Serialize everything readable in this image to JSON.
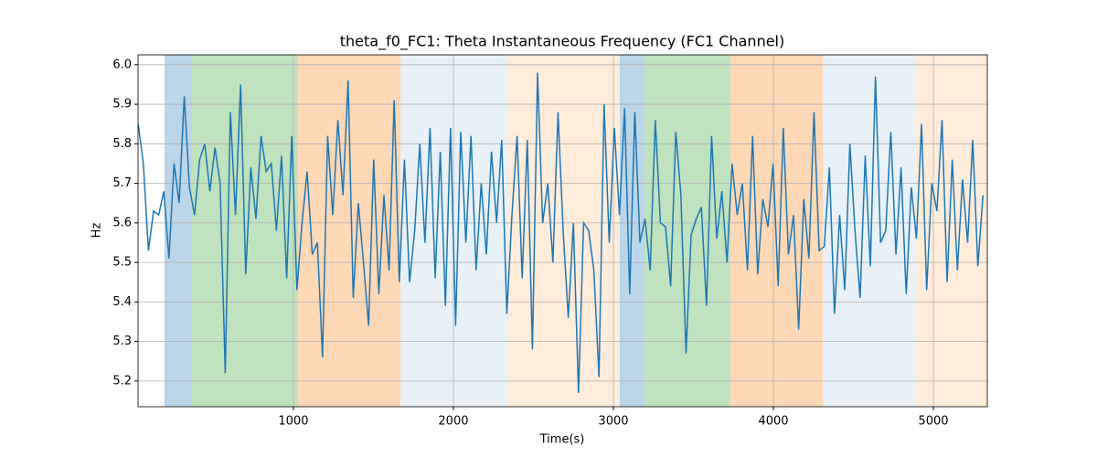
{
  "chart_data": {
    "type": "line",
    "title": "theta_f0_FC1: Theta Instantaneous Frequency (FC1 Channel)",
    "xlabel": "Time(s)",
    "ylabel": "Hz",
    "xlim": [
      29,
      5337
    ],
    "ylim": [
      5.135,
      6.025
    ],
    "xticks": [
      1000,
      2000,
      3000,
      4000,
      5000
    ],
    "yticks": [
      5.2,
      5.3,
      5.4,
      5.5,
      5.6,
      5.7,
      5.8,
      5.9,
      {
        "value": 6,
        "label": "6.0"
      }
    ],
    "grid": true,
    "regions": [
      {
        "start": 194,
        "end": 366,
        "color": "#1f77b4",
        "opacity": 0.3
      },
      {
        "start": 366,
        "end": 1029,
        "color": "#2ca02c",
        "opacity": 0.3
      },
      {
        "start": 1029,
        "end": 1669,
        "color": "#ff7f0e",
        "opacity": 0.3
      },
      {
        "start": 1669,
        "end": 2343,
        "color": "#1f77b4",
        "opacity": 0.1
      },
      {
        "start": 2343,
        "end": 3040,
        "color": "#ff7f0e",
        "opacity": 0.15
      },
      {
        "start": 3040,
        "end": 3194,
        "color": "#1f77b4",
        "opacity": 0.3
      },
      {
        "start": 3194,
        "end": 3731,
        "color": "#2ca02c",
        "opacity": 0.3
      },
      {
        "start": 3731,
        "end": 4309,
        "color": "#ff7f0e",
        "opacity": 0.3
      },
      {
        "start": 4309,
        "end": 4891,
        "color": "#1f77b4",
        "opacity": 0.1
      },
      {
        "start": 4891,
        "end": 5337,
        "color": "#ff7f0e",
        "opacity": 0.15
      }
    ],
    "x": [
      30,
      62,
      94,
      126,
      158,
      190,
      222,
      254,
      286,
      318,
      350,
      382,
      414,
      446,
      478,
      510,
      542,
      574,
      606,
      638,
      670,
      702,
      734,
      766,
      798,
      830,
      862,
      894,
      926,
      958,
      990,
      1022,
      1054,
      1086,
      1118,
      1150,
      1182,
      1214,
      1246,
      1278,
      1310,
      1342,
      1374,
      1406,
      1438,
      1470,
      1502,
      1534,
      1566,
      1598,
      1630,
      1662,
      1694,
      1726,
      1758,
      1790,
      1822,
      1854,
      1886,
      1918,
      1950,
      1982,
      2014,
      2046,
      2078,
      2110,
      2142,
      2174,
      2206,
      2238,
      2270,
      2302,
      2334,
      2366,
      2398,
      2430,
      2462,
      2494,
      2526,
      2558,
      2590,
      2622,
      2654,
      2686,
      2718,
      2750,
      2782,
      2814,
      2846,
      2878,
      2910,
      2942,
      2974,
      3006,
      3038,
      3070,
      3102,
      3134,
      3166,
      3198,
      3230,
      3262,
      3294,
      3326,
      3358,
      3390,
      3422,
      3454,
      3486,
      3518,
      3550,
      3582,
      3614,
      3646,
      3678,
      3710,
      3742,
      3774,
      3806,
      3838,
      3870,
      3902,
      3934,
      3966,
      3998,
      4030,
      4062,
      4094,
      4126,
      4158,
      4190,
      4222,
      4254,
      4286,
      4318,
      4350,
      4382,
      4414,
      4446,
      4478,
      4510,
      4542,
      4574,
      4606,
      4638,
      4670,
      4702,
      4734,
      4766,
      4798,
      4830,
      4862,
      4894,
      4926,
      4958,
      4990,
      5022,
      5054,
      5086,
      5118,
      5150,
      5182,
      5214,
      5246,
      5278,
      5310
    ],
    "series": [
      {
        "color": "#1f77b4",
        "values": [
          5.85,
          5.75,
          5.53,
          5.63,
          5.62,
          5.68,
          5.51,
          5.75,
          5.65,
          5.92,
          5.69,
          5.62,
          5.76,
          5.8,
          5.68,
          5.79,
          5.7,
          5.22,
          5.88,
          5.62,
          5.95,
          5.47,
          5.74,
          5.61,
          5.82,
          5.73,
          5.75,
          5.58,
          5.77,
          5.46,
          5.82,
          5.43,
          5.6,
          5.73,
          5.52,
          5.55,
          5.26,
          5.82,
          5.62,
          5.86,
          5.67,
          5.96,
          5.41,
          5.65,
          5.5,
          5.34,
          5.76,
          5.42,
          5.67,
          5.48,
          5.91,
          5.45,
          5.76,
          5.45,
          5.58,
          5.8,
          5.55,
          5.84,
          5.46,
          5.78,
          5.39,
          5.84,
          5.34,
          5.83,
          5.55,
          5.82,
          5.48,
          5.7,
          5.52,
          5.78,
          5.6,
          5.81,
          5.37,
          5.62,
          5.82,
          5.46,
          5.81,
          5.28,
          5.98,
          5.6,
          5.7,
          5.5,
          5.88,
          5.58,
          5.36,
          5.6,
          5.17,
          5.6,
          5.58,
          5.48,
          5.21,
          5.9,
          5.55,
          5.84,
          5.62,
          5.89,
          5.42,
          5.88,
          5.55,
          5.61,
          5.48,
          5.86,
          5.6,
          5.59,
          5.44,
          5.83,
          5.67,
          5.27,
          5.57,
          5.61,
          5.64,
          5.39,
          5.82,
          5.56,
          5.68,
          5.5,
          5.75,
          5.62,
          5.7,
          5.48,
          5.82,
          5.47,
          5.66,
          5.59,
          5.75,
          5.44,
          5.84,
          5.52,
          5.62,
          5.33,
          5.66,
          5.51,
          5.88,
          5.53,
          5.54,
          5.74,
          5.37,
          5.62,
          5.43,
          5.8,
          5.58,
          5.41,
          5.77,
          5.49,
          5.97,
          5.55,
          5.58,
          5.83,
          5.52,
          5.74,
          5.42,
          5.69,
          5.56,
          5.85,
          5.43,
          5.7,
          5.63,
          5.86,
          5.45,
          5.76,
          5.48,
          5.71,
          5.55,
          5.81,
          5.49,
          5.67
        ]
      }
    ]
  }
}
